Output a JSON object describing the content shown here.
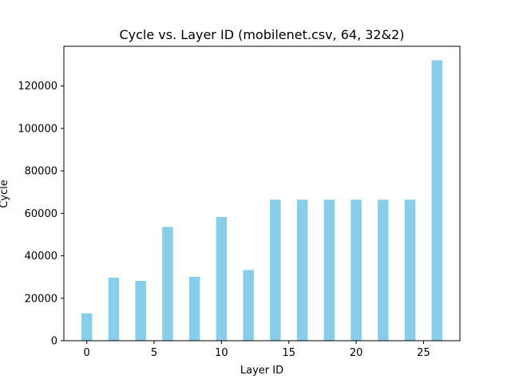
{
  "chart_data": {
    "type": "bar",
    "title": "Cycle vs. Layer ID (mobilenet.csv, 64, 32&2)",
    "xlabel": "Layer ID",
    "ylabel": "Cycle",
    "x": [
      0,
      2,
      4,
      6,
      8,
      10,
      12,
      14,
      16,
      18,
      20,
      22,
      24,
      26
    ],
    "values": [
      12900,
      29700,
      28200,
      53600,
      30100,
      58300,
      33300,
      66400,
      66400,
      66400,
      66400,
      66400,
      66400,
      132100
    ],
    "bar_width": 0.8,
    "bar_color": "#87ceeb",
    "xlim": [
      -1.7,
      27.7
    ],
    "ylim": [
      0,
      138700
    ],
    "xticks": [
      0,
      5,
      10,
      15,
      20,
      25
    ],
    "yticks": [
      0,
      20000,
      40000,
      60000,
      80000,
      100000,
      120000
    ],
    "grid": false,
    "legend": "none"
  }
}
